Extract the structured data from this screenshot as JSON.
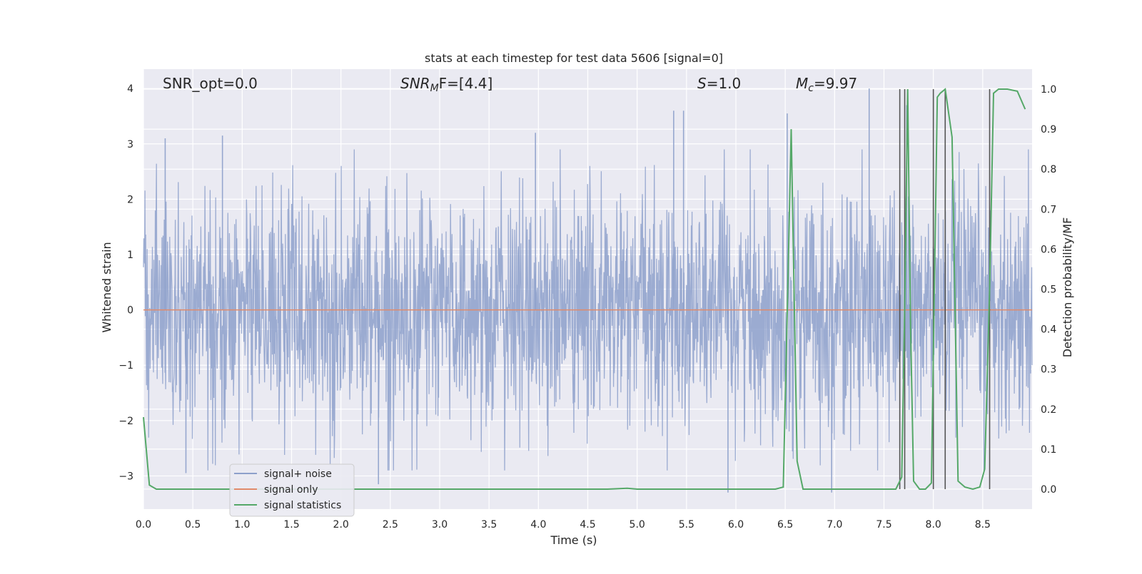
{
  "chart_data": {
    "type": "line",
    "title": "stats at each timestep for test data 5606 [signal=0]",
    "xlabel": "Time (s)",
    "ylabel_left": "Whitened strain",
    "ylabel_right": "Detection probability/MF",
    "xlim": [
      0.0,
      9.0
    ],
    "ylim_left": [
      -3.6,
      4.35
    ],
    "ylim_right": [
      -0.05,
      1.05
    ],
    "grid": true,
    "legend_position": "lower-left",
    "x_ticks": [
      "0.0",
      "0.5",
      "1.0",
      "1.5",
      "2.0",
      "2.5",
      "3.0",
      "3.5",
      "4.0",
      "4.5",
      "5.0",
      "5.5",
      "6.0",
      "6.5",
      "7.0",
      "7.5",
      "8.0",
      "8.5"
    ],
    "y_ticks_left": [
      "−3",
      "−2",
      "−1",
      "0",
      "1",
      "2",
      "3",
      "4"
    ],
    "y_ticks_right": [
      "0.0",
      "0.1",
      "0.2",
      "0.3",
      "0.4",
      "0.5",
      "0.6",
      "0.7",
      "0.8",
      "0.9",
      "1.0"
    ],
    "annotations": [
      {
        "prefix": "SNR_opt=0.0",
        "sub": "",
        "suffix": ""
      },
      {
        "prefix": "SNR",
        "sub": "M",
        "suffix": "F=[4.4]"
      },
      {
        "prefix": "S",
        "sub": "",
        "suffix": "=1.0"
      },
      {
        "prefix": "M",
        "sub": "c",
        "suffix": "=9.97"
      }
    ],
    "series": [
      {
        "name": "signal+ noise",
        "color": "#8da0cb",
        "axis": "left",
        "description_of_values": "whitened noise samples, amplitude roughly within -3.3 to 4.0",
        "peak_values": [
          {
            "x": 0.22,
            "y": 3.1
          },
          {
            "x": 0.8,
            "y": 3.15
          },
          {
            "x": 3.97,
            "y": 3.2
          },
          {
            "x": 5.37,
            "y": 3.6
          },
          {
            "x": 5.47,
            "y": 3.6
          },
          {
            "x": 6.52,
            "y": 3.55
          },
          {
            "x": 7.35,
            "y": 4.0
          },
          {
            "x": 7.73,
            "y": 3.7
          },
          {
            "x": 0.43,
            "y": -2.95
          },
          {
            "x": 2.38,
            "y": -3.15
          },
          {
            "x": 5.92,
            "y": -3.3
          },
          {
            "x": 6.97,
            "y": -3.3
          }
        ]
      },
      {
        "name": "signal only",
        "color": "#e08a6a",
        "axis": "left",
        "x": [
          0.0,
          9.0
        ],
        "y": [
          0.0,
          0.0
        ]
      },
      {
        "name": "signal statistics",
        "color": "#55a868",
        "axis": "right",
        "x": [
          0.0,
          0.06,
          0.13,
          0.3,
          1.0,
          2.0,
          3.0,
          4.0,
          4.7,
          4.9,
          5.0,
          5.5,
          6.0,
          6.4,
          6.48,
          6.53,
          6.56,
          6.62,
          6.68,
          6.75,
          7.0,
          7.4,
          7.62,
          7.68,
          7.71,
          7.74,
          7.77,
          7.8,
          7.86,
          7.92,
          7.98,
          8.04,
          8.07,
          8.12,
          8.19,
          8.25,
          8.32,
          8.4,
          8.47,
          8.52,
          8.57,
          8.61,
          8.66,
          8.75,
          8.85,
          8.93
        ],
        "y": [
          0.18,
          0.01,
          0.0,
          0.0,
          0.0,
          0.0,
          0.0,
          0.0,
          0.0,
          0.002,
          0.0,
          0.0,
          0.0,
          0.0,
          0.005,
          0.55,
          0.9,
          0.07,
          0.0,
          0.0,
          0.0,
          0.0,
          0.0,
          0.03,
          0.45,
          1.0,
          0.4,
          0.02,
          0.0,
          0.0,
          0.015,
          0.98,
          0.99,
          1.0,
          0.88,
          0.02,
          0.005,
          0.0,
          0.005,
          0.05,
          0.5,
          0.99,
          1.0,
          1.0,
          0.995,
          0.95
        ]
      }
    ],
    "vertical_lines": {
      "color": "#555555",
      "axis": "right",
      "y_range": [
        0.0,
        1.0
      ],
      "x": [
        7.66,
        7.71,
        8.0,
        8.12,
        8.57
      ]
    }
  }
}
